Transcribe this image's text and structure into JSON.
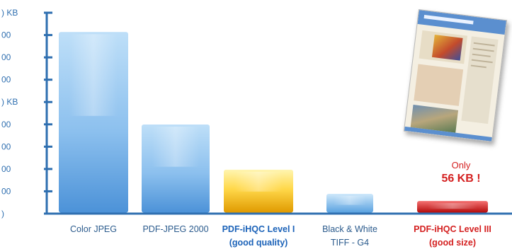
{
  "chart_data": {
    "type": "bar",
    "y_tick_labels": [
      ") KB",
      "00",
      "00",
      "00",
      ") KB",
      "00",
      "00",
      "00",
      "00",
      ")"
    ],
    "categories": [
      {
        "line1": "Color JPEG",
        "line2": "",
        "color": "#2a5a8c"
      },
      {
        "line1": "PDF-JPEG 2000",
        "line2": "",
        "color": "#2a5a8c"
      },
      {
        "line1": "PDF-iHQC Level I",
        "line2": "(good quality)",
        "color": "#1b62b8"
      },
      {
        "line1": "Black & White",
        "line2": "TIFF - G4",
        "color": "#2a5a8c"
      },
      {
        "line1": "PDF-iHQC Level III",
        "line2": "(good size)",
        "color": "#d42020"
      }
    ],
    "values": [
      805,
      395,
      195,
      88,
      56
    ],
    "unit": "KB",
    "ylim": [
      0,
      900
    ],
    "bar_styles": [
      "blue",
      "blue",
      "gold",
      "lightblue",
      "red"
    ],
    "colors": {
      "axis": "#2f6fb0",
      "blue_top": "#b3d8f5",
      "blue_bottom": "#4c92d8",
      "gold_top": "#fff2a0",
      "gold_bottom": "#e2a300",
      "red_top": "#f26060",
      "red_bottom": "#b50f0f",
      "highlight_text": "#d42020"
    },
    "annotation": {
      "line1": "Only",
      "line2": "56 KB !"
    }
  }
}
